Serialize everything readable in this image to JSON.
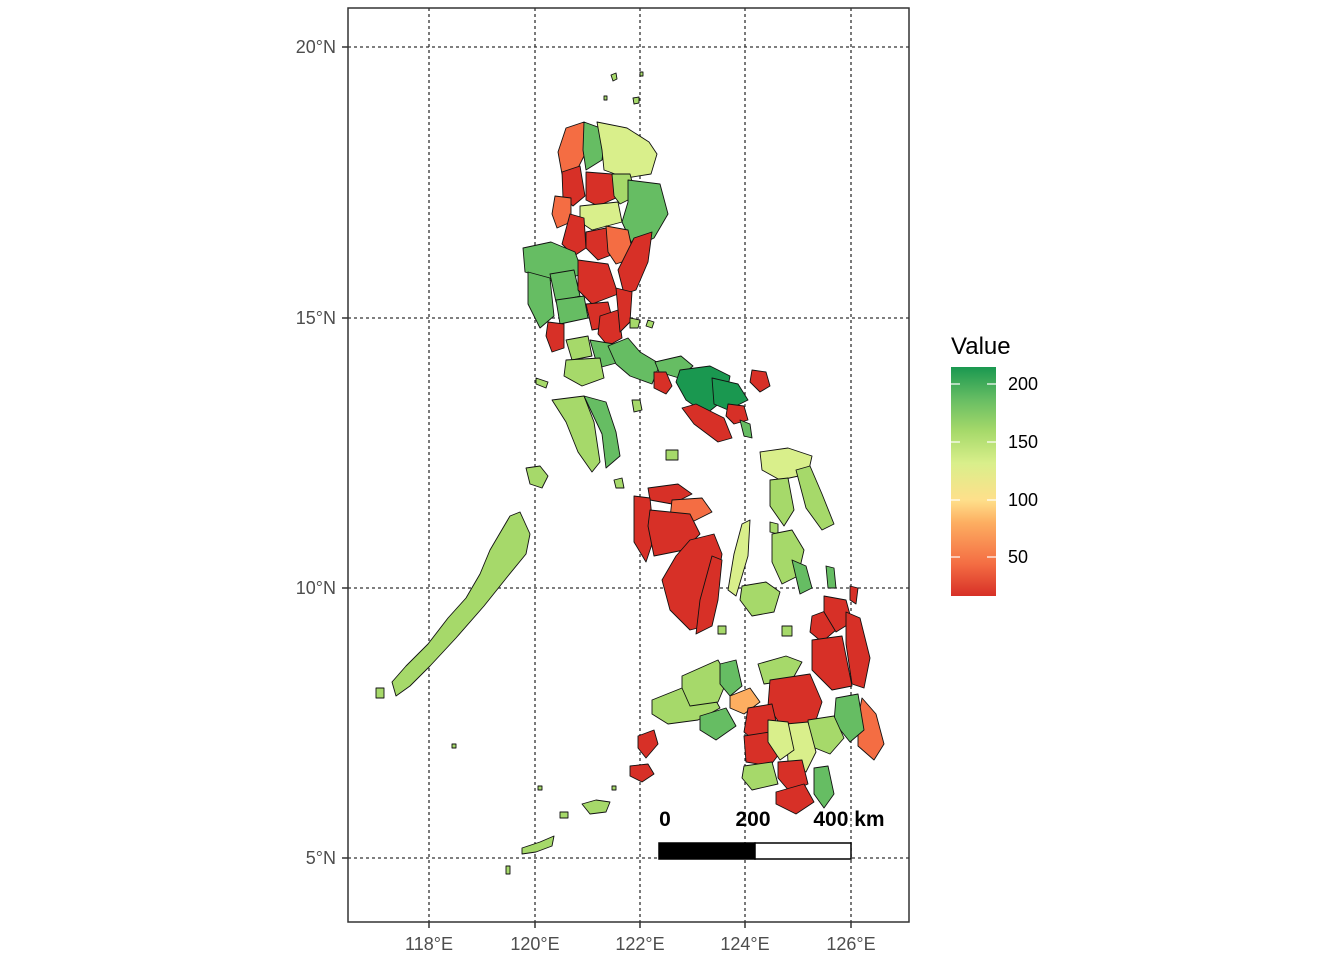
{
  "map": {
    "lat_ticks": [
      "20°N",
      "15°N",
      "10°N",
      "5°N"
    ],
    "lon_ticks": [
      "118°E",
      "120°E",
      "122°E",
      "124°E",
      "126°E"
    ]
  },
  "legend": {
    "title": "Value",
    "labels": [
      "200",
      "150",
      "100",
      "50"
    ],
    "range": [
      15,
      215
    ],
    "colors": [
      "#d73027",
      "#f46d43",
      "#fdae61",
      "#fee08b",
      "#d9ef8b",
      "#a6d96a",
      "#66bd63",
      "#1a9850"
    ]
  },
  "scalebar": {
    "labels": [
      "0",
      "200",
      "400 km"
    ]
  },
  "colors": {
    "low": "#d73027",
    "orange": "#f46d43",
    "mid": "#fee08b",
    "lightgreen": "#d9ef8b",
    "green": "#a6d96a",
    "midgreen": "#66bd63",
    "high": "#1a9850"
  }
}
